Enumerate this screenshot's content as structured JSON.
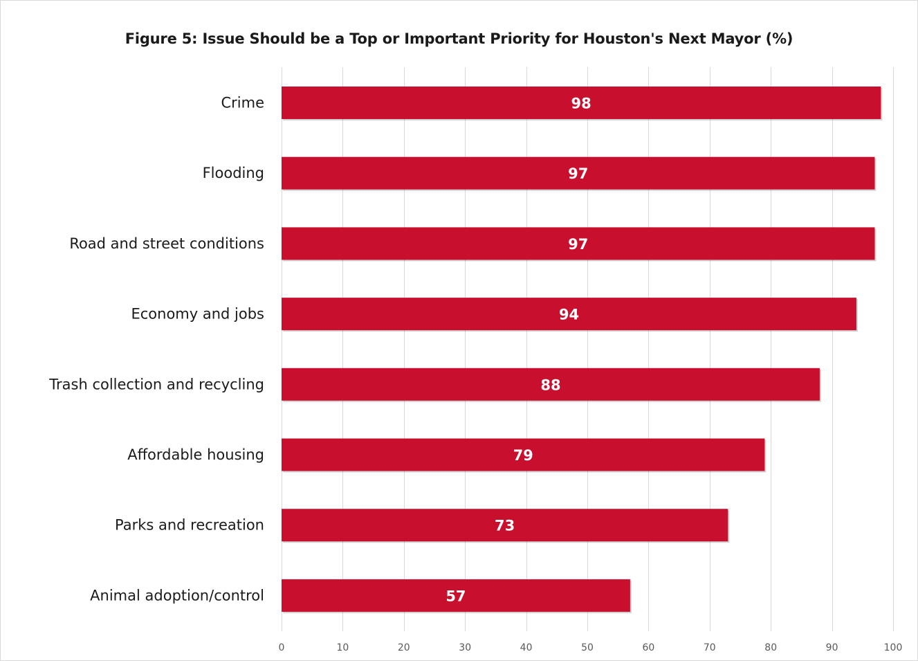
{
  "chart_data": {
    "type": "bar",
    "orientation": "horizontal",
    "title": "Figure 5: Issue Should be a Top or Important Priority for Houston's Next Mayor (%)",
    "categories": [
      "Crime",
      "Flooding",
      "Road and street conditions",
      "Economy and jobs",
      "Trash collection and recycling",
      "Affordable housing",
      "Parks and recreation",
      "Animal adoption/control"
    ],
    "values": [
      98,
      97,
      97,
      94,
      88,
      79,
      73,
      57
    ],
    "xlim": [
      0,
      100
    ],
    "xticks": [
      0,
      10,
      20,
      30,
      40,
      50,
      60,
      70,
      80,
      90,
      100
    ],
    "grid": "vertical",
    "legend": "none",
    "bar_color": "#c8102e",
    "bar_label_color": "#ffffff",
    "gridline_color": "#d9d9d9"
  }
}
